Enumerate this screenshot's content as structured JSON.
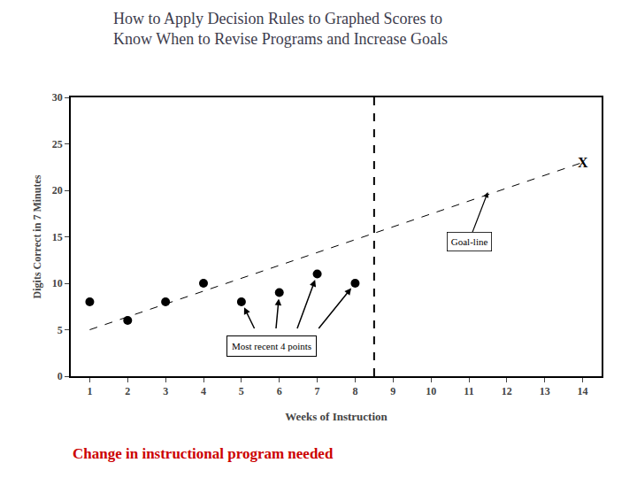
{
  "chart_data": {
    "type": "scatter",
    "title": "How to Apply Decision Rules to Graphed Scores to\nKnow When to Revise Programs and Increase Goals",
    "xlabel": "Weeks of Instruction",
    "ylabel": "Digits Correct in 7 Minutes",
    "xlim": [
      0.5,
      14.5
    ],
    "ylim": [
      0,
      30
    ],
    "xticks": [
      1,
      2,
      3,
      4,
      5,
      6,
      7,
      8,
      9,
      10,
      11,
      12,
      13,
      14
    ],
    "yticks": [
      0,
      5,
      10,
      15,
      20,
      25,
      30
    ],
    "grid": false,
    "series": [
      {
        "type": "scatter",
        "marker": "circle",
        "color": "#000000",
        "x": [
          1,
          2,
          3,
          4,
          5,
          6,
          7,
          8
        ],
        "values": [
          8,
          6,
          8,
          10,
          8,
          9,
          11,
          10
        ]
      },
      {
        "type": "line",
        "line_style": "dashed",
        "color": "#000000",
        "x": [
          1,
          14
        ],
        "values": [
          5,
          23
        ]
      }
    ],
    "vline": {
      "x": 8.5,
      "color": "#000000",
      "line_style": "dashed"
    },
    "annotations": [
      {
        "text": "X",
        "x": 14,
        "y": 23
      },
      {
        "text": "Most recent 4 points",
        "x": 5.8,
        "y": 3.2,
        "point_x": [
          5,
          6,
          7,
          8
        ]
      },
      {
        "text": "Goal-line",
        "x": 11.0,
        "y": 14.5,
        "arrow_x": 11.5,
        "arrow_y": 19.8
      }
    ],
    "note": {
      "text": "Change in instructional program needed",
      "color": "#cc0000"
    }
  }
}
